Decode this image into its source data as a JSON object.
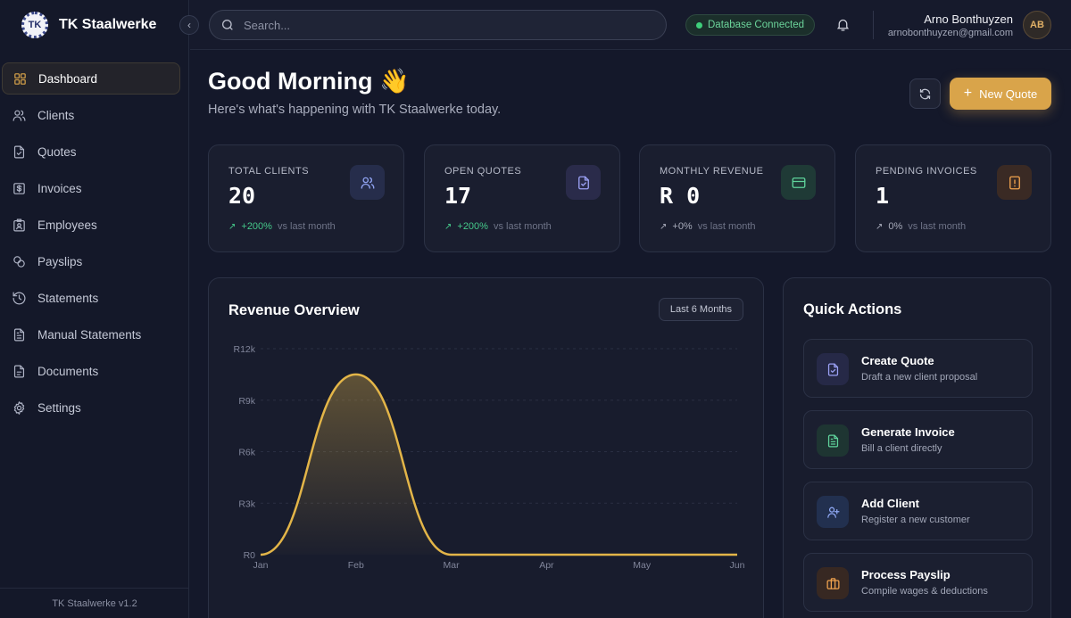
{
  "brand": {
    "logo_text": "TK",
    "name": "TK Staalwerke"
  },
  "sidebar": {
    "items": [
      {
        "label": "Dashboard",
        "icon": "dashboard-grid-icon",
        "active": true
      },
      {
        "label": "Clients",
        "icon": "users-icon",
        "active": false
      },
      {
        "label": "Quotes",
        "icon": "document-check-icon",
        "active": false
      },
      {
        "label": "Invoices",
        "icon": "dollar-icon",
        "active": false
      },
      {
        "label": "Employees",
        "icon": "badge-icon",
        "active": false
      },
      {
        "label": "Payslips",
        "icon": "coins-icon",
        "active": false
      },
      {
        "label": "Statements",
        "icon": "history-icon",
        "active": false
      },
      {
        "label": "Manual Statements",
        "icon": "document-lines-icon",
        "active": false
      },
      {
        "label": "Documents",
        "icon": "document-icon",
        "active": false
      },
      {
        "label": "Settings",
        "icon": "gear-icon",
        "active": false
      }
    ],
    "footer": "TK Staalwerke v1.2"
  },
  "topbar": {
    "search_placeholder": "Search...",
    "db_status": "Database Connected",
    "user_name": "Arno Bonthuyzen",
    "user_email": "arnobonthuyzen@gmail.com",
    "user_initials": "AB"
  },
  "main": {
    "greeting": "Good Morning 👋",
    "subgreeting": "Here's what's happening with TK Staalwerke today.",
    "new_quote_label": "New Quote"
  },
  "stats": [
    {
      "label": "TOTAL CLIENTS",
      "value": "20",
      "trend": "+200%",
      "trend_note": "vs last month",
      "trend_type": "up",
      "icon": "users-icon",
      "icon_color": "#8fa2f0",
      "icon_bg": "#262d4b"
    },
    {
      "label": "OPEN QUOTES",
      "value": "17",
      "trend": "+200%",
      "trend_note": "vs last month",
      "trend_type": "up",
      "icon": "document-check-icon",
      "icon_color": "#9aa0f3",
      "icon_bg": "#2a2b4a"
    },
    {
      "label": "MONTHLY REVENUE",
      "value": "R 0",
      "trend": "+0%",
      "trend_note": "vs last month",
      "trend_type": "flat",
      "icon": "credit-card-icon",
      "icon_color": "#5fd39b",
      "icon_bg": "#1f3a36"
    },
    {
      "label": "PENDING INVOICES",
      "value": "1",
      "trend": "0%",
      "trend_note": "vs last month",
      "trend_type": "flat",
      "icon": "alert-document-icon",
      "icon_color": "#f0a24e",
      "icon_bg": "#3a2a24"
    }
  ],
  "revenue": {
    "title": "Revenue Overview",
    "range_label": "Last 6 Months"
  },
  "chart_data": {
    "type": "area",
    "title": "Revenue Overview",
    "categories": [
      "Jan",
      "Feb",
      "Mar",
      "Apr",
      "May",
      "Jun"
    ],
    "values": [
      0,
      10500,
      0,
      0,
      0,
      0
    ],
    "y_ticks": [
      "R0",
      "R3k",
      "R6k",
      "R9k",
      "R12k"
    ],
    "ylim": [
      0,
      12000
    ],
    "line_color": "#e3b548",
    "grid": true
  },
  "quick_actions": {
    "title": "Quick Actions",
    "items": [
      {
        "label": "Create Quote",
        "desc": "Draft a new client proposal",
        "icon": "document-check-icon",
        "icon_color": "#9aa0f3",
        "icon_bg": "#262947"
      },
      {
        "label": "Generate Invoice",
        "desc": "Bill a client directly",
        "icon": "document-lines-icon",
        "icon_color": "#5fd39b",
        "icon_bg": "#1e3532"
      },
      {
        "label": "Add Client",
        "desc": "Register a new customer",
        "icon": "user-plus-icon",
        "icon_color": "#8fa8f4",
        "icon_bg": "#22304f"
      },
      {
        "label": "Process Payslip",
        "desc": "Compile wages & deductions",
        "icon": "briefcase-icon",
        "icon_color": "#f0a24e",
        "icon_bg": "#372822"
      }
    ]
  }
}
